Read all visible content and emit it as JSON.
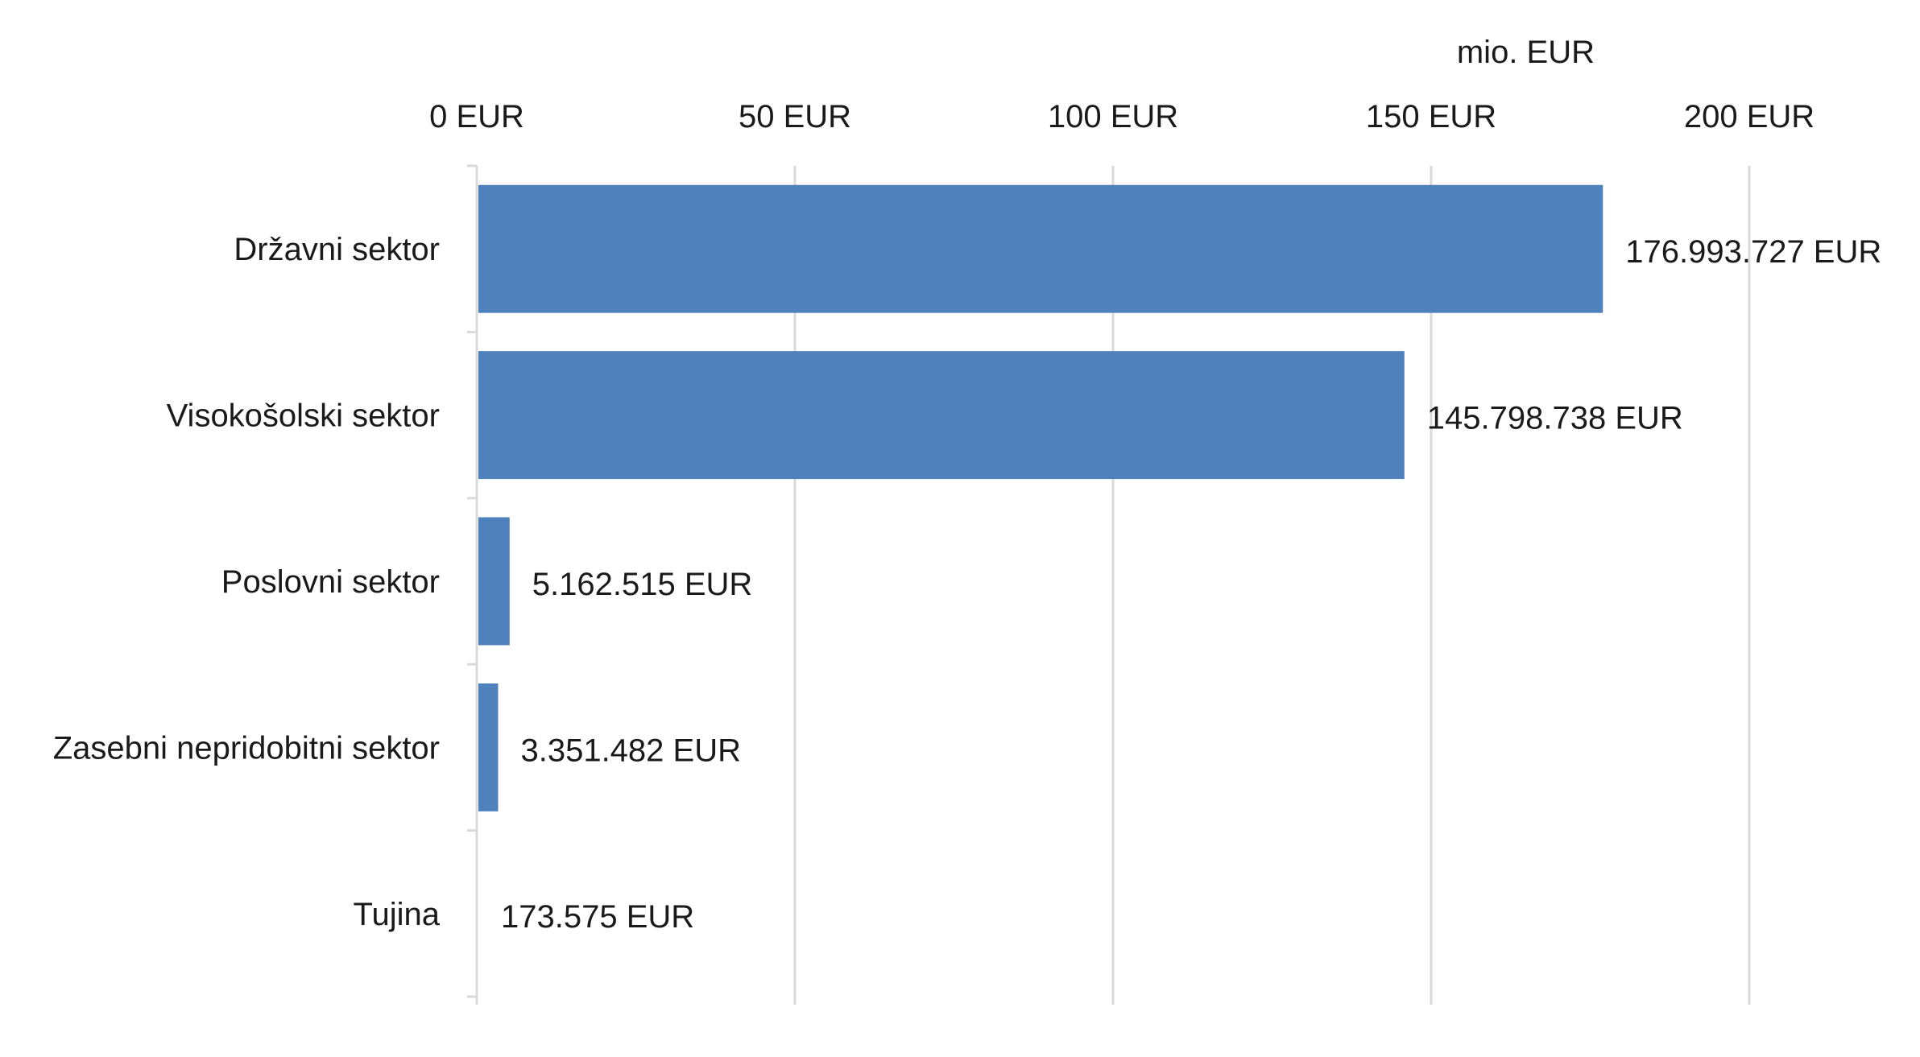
{
  "chart_data": {
    "type": "bar",
    "orientation": "horizontal",
    "unit_label": "mio. EUR",
    "categories": [
      "Državni sektor",
      "Visokošolski sektor",
      "Poslovni sektor",
      "Zasebni nepridobitni sektor",
      "Tujina"
    ],
    "values": [
      176.993727,
      145.798738,
      5.162515,
      3.351482,
      0.173575
    ],
    "data_labels": [
      "176.993.727 EUR",
      "145.798.738 EUR",
      "5.162.515 EUR",
      "3.351.482 EUR",
      "173.575 EUR"
    ],
    "xlim": [
      0,
      200
    ],
    "ticks": [
      0,
      50,
      100,
      150,
      200
    ],
    "tick_labels": [
      "0 EUR",
      "50 EUR",
      "100 EUR",
      "150 EUR",
      "200 EUR"
    ],
    "axis_position": "top",
    "grid": true,
    "bar_color": "#4F81BD",
    "grid_color": "#D9D9D9"
  }
}
